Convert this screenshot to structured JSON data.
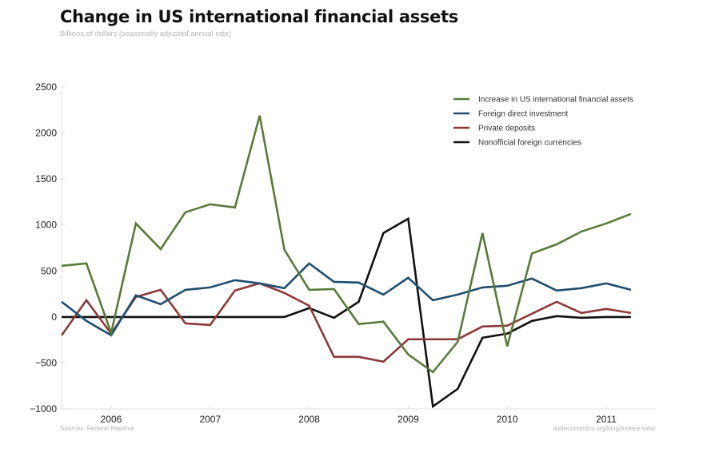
{
  "chart_data": {
    "type": "line",
    "title": "Change in US international financial assets",
    "subtitle": "Billions of dollars (seasonally adjusted annual rate)",
    "xlabel": "",
    "ylabel": "",
    "xlim": [
      2005.5,
      2011.5
    ],
    "ylim": [
      -1000,
      2500
    ],
    "x_ticks": [
      2006,
      2007,
      2008,
      2009,
      2010,
      2011
    ],
    "x_tick_labels": [
      "2006",
      "2007",
      "2008",
      "2009",
      "2010",
      "2011"
    ],
    "y_ticks": [
      2500,
      2000,
      1500,
      1000,
      500,
      0,
      -500,
      -1000
    ],
    "y_tick_labels": [
      "2500",
      "2000",
      "1500",
      "1000",
      "500",
      "0",
      "−500",
      "−1000"
    ],
    "grid": false,
    "legend_position": "top-right",
    "x": [
      2005.5,
      2005.75,
      2006.0,
      2006.25,
      2006.5,
      2006.75,
      2007.0,
      2007.25,
      2007.5,
      2007.75,
      2008.0,
      2008.25,
      2008.5,
      2008.75,
      2009.0,
      2009.25,
      2009.5,
      2009.75,
      2010.0,
      2010.25,
      2010.5,
      2010.75,
      2011.0,
      2011.25
    ],
    "series": [
      {
        "name": "Increase in US international financial assets",
        "color": "#5a7a3a",
        "values": [
          556,
          582,
          -174,
          1017,
          738,
          1138,
          1225,
          1190,
          2190,
          730,
          295,
          304,
          -78,
          -52,
          -408,
          -600,
          -270,
          912,
          -320,
          690,
          790,
          929,
          1017,
          1121
        ]
      },
      {
        "name": "Foreign direct investment",
        "color": "#1f4e6e",
        "values": [
          165,
          -43,
          -200,
          235,
          139,
          295,
          321,
          400,
          365,
          313,
          582,
          382,
          374,
          243,
          426,
          182,
          243,
          321,
          339,
          417,
          287,
          313,
          365,
          295
        ]
      },
      {
        "name": "Private deposits",
        "color": "#8b3a3a",
        "values": [
          -200,
          182,
          -182,
          217,
          295,
          -70,
          -87,
          287,
          365,
          261,
          122,
          -434,
          -434,
          -487,
          -243,
          -243,
          -243,
          -104,
          -95,
          35,
          165,
          43,
          87,
          43
        ]
      },
      {
        "name": "Nonofficial foreign currencies",
        "color": "#111111",
        "values": [
          0,
          0,
          0,
          0,
          0,
          0,
          0,
          0,
          0,
          0,
          96,
          -9,
          165,
          912,
          1069,
          -973,
          -782,
          -226,
          -182,
          -43,
          9,
          -9,
          0,
          0
        ]
      }
    ],
    "source": "Sources: Federal Reserve",
    "credit": "ineteconomics.org/blog/money-view"
  }
}
